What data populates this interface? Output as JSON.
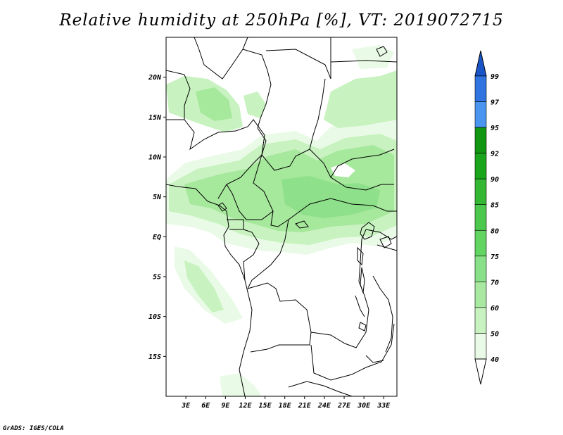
{
  "title": "Relative humidity at 250hPa [%], VT: 2019072715",
  "credit": "GrADS: IGES/COLA",
  "map": {
    "lat_ticks": [
      "20N",
      "15N",
      "10N",
      "5N",
      "EQ",
      "5S",
      "10S",
      "15S"
    ],
    "lon_ticks": [
      "3E",
      "6E",
      "9E",
      "12E",
      "15E",
      "18E",
      "21E",
      "24E",
      "27E",
      "30E",
      "33E"
    ],
    "lat_range": [
      -20,
      25
    ],
    "lon_range": [
      0,
      35
    ],
    "colors": {
      "shade_40": "#e9fbe6",
      "shade_50": "#c8f2c0",
      "shade_60": "#a6e89c",
      "shade_70": "#8ee08a",
      "border": "#000000"
    }
  },
  "legend": {
    "labels": [
      "99",
      "97",
      "95",
      "92",
      "90",
      "85",
      "80",
      "75",
      "70",
      "60",
      "50",
      "40"
    ],
    "colors": [
      "#1a55c8",
      "#2f74e0",
      "#4a95ef",
      "#119611",
      "#1aa51a",
      "#34b834",
      "#4cc84c",
      "#62d462",
      "#88e088",
      "#a8e8a0",
      "#c8f2c0",
      "#e9fbe6",
      "#ffffff"
    ]
  }
}
